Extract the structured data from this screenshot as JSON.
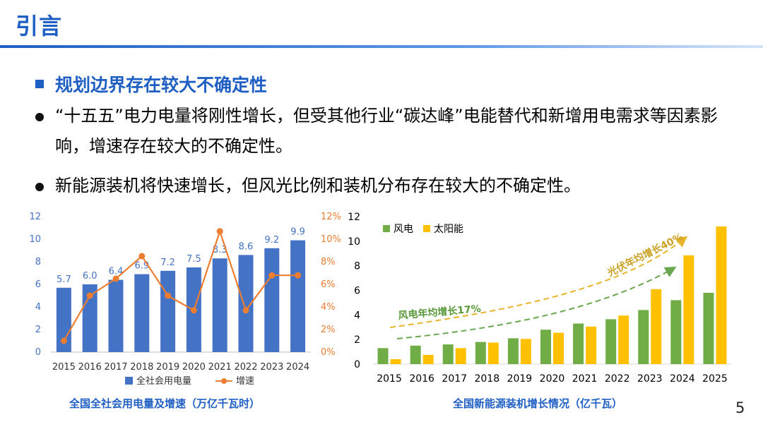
{
  "title": "引言",
  "heading": "规划边界存在较大不确定性",
  "bullets": [
    "“十五五”电力电量将刚性增长，但受其他行业“碳达峰”电能替代和新增用电需求等因素影响，增速存在较大的不确定性。",
    "新能源装机将快速增长，但风光比例和装机分布存在较大的不确定性。"
  ],
  "chart_data": [
    {
      "type": "bar",
      "categories": [
        "2015",
        "2016",
        "2017",
        "2018",
        "2019",
        "2020",
        "2021",
        "2022",
        "2023",
        "2024"
      ],
      "series": [
        {
          "name": "全社会用电量",
          "kind": "bar",
          "axis": "left",
          "values": [
            5.7,
            6.0,
            6.4,
            6.9,
            7.2,
            7.5,
            8.3,
            8.6,
            9.2,
            9.9
          ]
        },
        {
          "name": "增速",
          "kind": "line",
          "axis": "right",
          "values": [
            1.0,
            5.0,
            6.5,
            8.5,
            5.0,
            3.7,
            10.7,
            3.7,
            6.8,
            6.8
          ]
        }
      ],
      "y_ticks": [
        "0",
        "2",
        "4",
        "6",
        "8",
        "10",
        "12"
      ],
      "y2_ticks": [
        "0%",
        "2%",
        "4%",
        "6%",
        "8%",
        "10%",
        "12%"
      ],
      "ylim": [
        0,
        12
      ],
      "y2lim": [
        0,
        12
      ],
      "data_labels": [
        "5.7",
        "6.0",
        "6.4",
        "6.9",
        "7.2",
        "7.5",
        "8.3",
        "8.6",
        "9.2",
        "9.9"
      ],
      "legend": "bottom",
      "caption": "全国全社会用电量及增速（万亿千瓦时）",
      "colors": {
        "bar": "#4472c4",
        "line": "#ed7d31",
        "label": "#4472c4"
      }
    },
    {
      "type": "bar",
      "categories": [
        "2015",
        "2016",
        "2017",
        "2018",
        "2019",
        "2020",
        "2021",
        "2022",
        "2023",
        "2024",
        "2025"
      ],
      "series": [
        {
          "name": "风电",
          "values": [
            1.3,
            1.5,
            1.6,
            1.8,
            2.1,
            2.8,
            3.3,
            3.65,
            4.4,
            5.2,
            5.8
          ]
        },
        {
          "name": "太阳能",
          "values": [
            0.4,
            0.75,
            1.3,
            1.75,
            2.05,
            2.55,
            3.05,
            3.95,
            6.1,
            8.85,
            11.2
          ]
        }
      ],
      "y_ticks": [
        "0",
        "2",
        "4",
        "6",
        "8",
        "10",
        "12"
      ],
      "ylim": [
        0,
        12
      ],
      "legend": "top-left",
      "annotations": [
        "光伏年均增长40%",
        "风电年均增长17%"
      ],
      "caption": "全国新能源装机增长情况（亿千瓦）",
      "colors": {
        "wind": "#70ad47",
        "solar": "#ffc000",
        "pv_arrow": "#e8b52a",
        "wind_arrow": "#6aa84f"
      }
    }
  ],
  "page_number": "5"
}
